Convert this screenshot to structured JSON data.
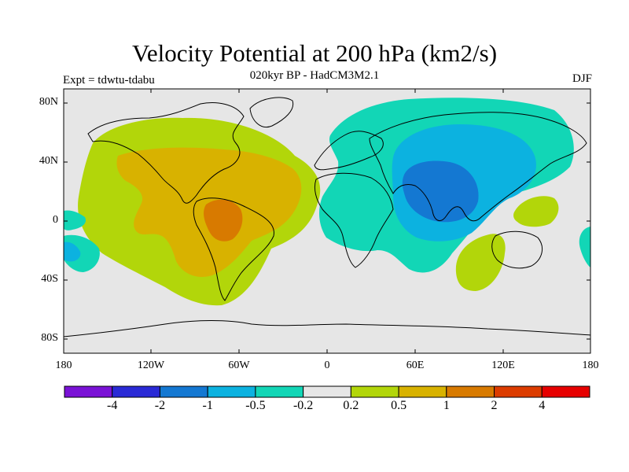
{
  "title": "Velocity Potential at 200 hPa (km2/s)",
  "subtitle": "020kyr BP - HadCM3M2.1",
  "left_label": "Expt = tdwtu-tdabu",
  "right_label": "DJF",
  "lat_ticks": [
    "80N",
    "40N",
    "0",
    "40S",
    "80S"
  ],
  "lon_ticks": [
    "180",
    "120W",
    "60W",
    "0",
    "60E",
    "120E",
    "180"
  ],
  "colorbar": {
    "colors": [
      "#7a12d6",
      "#2a2ad6",
      "#1478d2",
      "#0cb2e0",
      "#12d6b6",
      "#e6e6e6",
      "#b2d60a",
      "#d8b200",
      "#d87a00",
      "#dc3c00",
      "#e60000"
    ],
    "labels": [
      "-4",
      "-2",
      "-1",
      "-0.5",
      "-0.2",
      "0.2",
      "0.5",
      "1",
      "2",
      "4"
    ]
  }
}
